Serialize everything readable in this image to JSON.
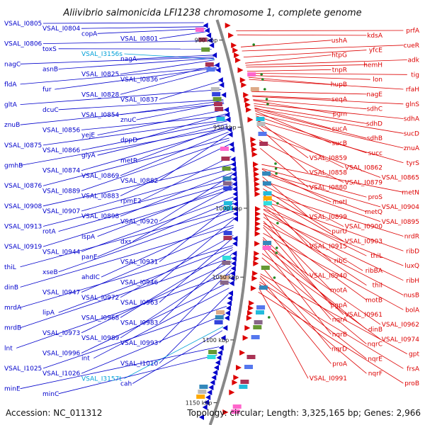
{
  "title": "Aliivibrio salmonicida LFI1238 chromosome 1, complete genome",
  "footer": {
    "accession": "Accession: NC_011312",
    "topology": "Topology: circular; Length: 3,325,165 bp; Genes: 2,966"
  },
  "colors": {
    "forward": "#0000cc",
    "reverse": "#dd0000",
    "rna": "#00a0d8",
    "backbone": "#888888",
    "dot": "#228822"
  },
  "scale_labels": [
    {
      "text": "900 kbp",
      "frac": 0.05
    },
    {
      "text": "950 kbp",
      "frac": 0.265
    },
    {
      "text": "1000 kbp",
      "frac": 0.465
    },
    {
      "text": "1050 kbp",
      "frac": 0.635
    },
    {
      "text": "1100 kbp",
      "frac": 0.79
    },
    {
      "text": "1150 kbp",
      "frac": 0.945
    }
  ],
  "left_labels": [
    {
      "text": "VSAL_I0805",
      "frac": 0.0,
      "type": "fwd"
    },
    {
      "text": "VSAL_I0804",
      "frac": 0.01,
      "type": "fwd"
    },
    {
      "text": "copA",
      "frac": 0.015,
      "type": "fwd"
    },
    {
      "text": "VSAL_I0801",
      "frac": 0.022,
      "type": "fwd"
    },
    {
      "text": "VSAL_I0806",
      "frac": 0.045,
      "type": "fwd"
    },
    {
      "text": "toxS",
      "frac": 0.065,
      "type": "fwd"
    },
    {
      "text": "VSAL_I3156s",
      "frac": 0.09,
      "type": "rna"
    },
    {
      "text": "nagA",
      "frac": 0.08,
      "type": "fwd"
    },
    {
      "text": "nagC",
      "frac": 0.085,
      "type": "fwd"
    },
    {
      "text": "asnB",
      "frac": 0.088,
      "type": "fwd"
    },
    {
      "text": "VSAL_I0825",
      "frac": 0.092,
      "type": "fwd"
    },
    {
      "text": "VSAL_I0836",
      "frac": 0.105,
      "type": "fwd"
    },
    {
      "text": "fldA",
      "frac": 0.11,
      "type": "fwd"
    },
    {
      "text": "fur",
      "frac": 0.112,
      "type": "fwd"
    },
    {
      "text": "VSAL_I0828",
      "frac": 0.115,
      "type": "fwd"
    },
    {
      "text": "VSAL_I0837",
      "frac": 0.145,
      "type": "fwd"
    },
    {
      "text": "gltA",
      "frac": 0.165,
      "type": "fwd"
    },
    {
      "text": "dcuC",
      "frac": 0.19,
      "type": "fwd"
    },
    {
      "text": "VSAL_I0854",
      "frac": 0.193,
      "type": "fwd"
    },
    {
      "text": "znuC",
      "frac": 0.197,
      "type": "fwd"
    },
    {
      "text": "znuB",
      "frac": 0.2,
      "type": "fwd"
    },
    {
      "text": "VSAL_I0856",
      "frac": 0.23,
      "type": "fwd"
    },
    {
      "text": "yejE",
      "frac": 0.215,
      "type": "fwd"
    },
    {
      "text": "dppD",
      "frac": 0.225,
      "type": "fwd"
    },
    {
      "text": "VSAL_I0875",
      "frac": 0.24,
      "type": "fwd"
    },
    {
      "text": "VSAL_I0866",
      "frac": 0.243,
      "type": "fwd"
    },
    {
      "text": "glyA",
      "frac": 0.25,
      "type": "fwd"
    },
    {
      "text": "metR",
      "frac": 0.255,
      "type": "fwd"
    },
    {
      "text": "gmhB",
      "frac": 0.26,
      "type": "fwd"
    },
    {
      "text": "VSAL_I0874",
      "frac": 0.262,
      "type": "fwd"
    },
    {
      "text": "VSAL_I0869",
      "frac": 0.27,
      "type": "fwd"
    },
    {
      "text": "VSAL_I0882",
      "frac": 0.275,
      "type": "fwd"
    },
    {
      "text": "VSAL_I0876",
      "frac": 0.285,
      "type": "fwd"
    },
    {
      "text": "VSAL_I0889",
      "frac": 0.29,
      "type": "fwd"
    },
    {
      "text": "VSAL_I0883",
      "frac": 0.3,
      "type": "fwd"
    },
    {
      "text": "rpmE2",
      "frac": 0.33,
      "type": "fwd"
    },
    {
      "text": "VSAL_I0908",
      "frac": 0.35,
      "type": "fwd"
    },
    {
      "text": "VSAL_I0907",
      "frac": 0.36,
      "type": "fwd"
    },
    {
      "text": "VSAL_I0898",
      "frac": 0.37,
      "type": "fwd"
    },
    {
      "text": "VSAL_I0920",
      "frac": 0.375,
      "type": "fwd"
    },
    {
      "text": "VSAL_I0913",
      "frac": 0.385,
      "type": "fwd"
    },
    {
      "text": "rotA",
      "frac": 0.395,
      "type": "fwd"
    },
    {
      "text": "ispA",
      "frac": 0.4,
      "type": "fwd"
    },
    {
      "text": "dxs",
      "frac": 0.405,
      "type": "fwd"
    },
    {
      "text": "VSAL_I0919",
      "frac": 0.41,
      "type": "fwd"
    },
    {
      "text": "VSAL_I0944",
      "frac": 0.43,
      "type": "fwd"
    },
    {
      "text": "panE",
      "frac": 0.44,
      "type": "fwd"
    },
    {
      "text": "VSAL_I0931",
      "frac": 0.445,
      "type": "fwd"
    },
    {
      "text": "thiL",
      "frac": 0.46,
      "type": "fwd"
    },
    {
      "text": "xseB",
      "frac": 0.465,
      "type": "fwd"
    },
    {
      "text": "ahdIC",
      "frac": 0.48,
      "type": "fwd"
    },
    {
      "text": "VSAL_I0946",
      "frac": 0.485,
      "type": "fwd"
    },
    {
      "text": "dinB",
      "frac": 0.5,
      "type": "fwd"
    },
    {
      "text": "VSAL_I0947",
      "frac": 0.505,
      "type": "fwd"
    },
    {
      "text": "VSAL_I0972",
      "frac": 0.525,
      "type": "fwd"
    },
    {
      "text": "VSAL_I0963",
      "frac": 0.53,
      "type": "fwd"
    },
    {
      "text": "mrdA",
      "frac": 0.55,
      "type": "fwd"
    },
    {
      "text": "lipA",
      "frac": 0.555,
      "type": "fwd"
    },
    {
      "text": "VSAL_I0968",
      "frac": 0.56,
      "type": "fwd"
    },
    {
      "text": "VSAL_I0983",
      "frac": 0.57,
      "type": "fwd"
    },
    {
      "text": "mrdB",
      "frac": 0.58,
      "type": "fwd"
    },
    {
      "text": "VSAL_I0973",
      "frac": 0.59,
      "type": "fwd"
    },
    {
      "text": "VSAL_I0989",
      "frac": 0.6,
      "type": "fwd"
    },
    {
      "text": "VSAL_I0993",
      "frac": 0.61,
      "type": "fwd"
    },
    {
      "text": "lnt",
      "frac": 0.62,
      "type": "fwd"
    },
    {
      "text": "VSAL_I0996",
      "frac": 0.64,
      "type": "fwd"
    },
    {
      "text": "int",
      "frac": 0.655,
      "type": "fwd"
    },
    {
      "text": "VSAL_I1010",
      "frac": 0.67,
      "type": "fwd"
    },
    {
      "text": "VSAL_I1025",
      "frac": 0.7,
      "type": "fwd"
    },
    {
      "text": "VSAL_I1026",
      "frac": 0.72,
      "type": "fwd"
    },
    {
      "text": "VSAL_I3157t",
      "frac": 0.75,
      "type": "rna"
    },
    {
      "text": "cah",
      "frac": 0.76,
      "type": "fwd"
    },
    {
      "text": "minE",
      "frac": 0.8,
      "type": "fwd"
    },
    {
      "text": "minC",
      "frac": 0.82,
      "type": "fwd"
    }
  ],
  "right_labels": [
    {
      "text": "prfA",
      "frac": 0.02
    },
    {
      "text": "kdsA",
      "frac": 0.03
    },
    {
      "text": "ushA",
      "frac": 0.06
    },
    {
      "text": "cueR",
      "frac": 0.07
    },
    {
      "text": "yfcE",
      "frac": 0.085
    },
    {
      "text": "htpG",
      "frac": 0.1
    },
    {
      "text": "adk",
      "frac": 0.105
    },
    {
      "text": "hemH",
      "frac": 0.11
    },
    {
      "text": "tnpR",
      "frac": 0.12
    },
    {
      "text": "tig",
      "frac": 0.125
    },
    {
      "text": "lon",
      "frac": 0.13
    },
    {
      "text": "hupB",
      "frac": 0.135
    },
    {
      "text": "rfaH",
      "frac": 0.14
    },
    {
      "text": "nagE",
      "frac": 0.17
    },
    {
      "text": "seqA",
      "frac": 0.18
    },
    {
      "text": "glnS",
      "frac": 0.182
    },
    {
      "text": "sdhC",
      "frac": 0.19
    },
    {
      "text": "pgm",
      "frac": 0.192
    },
    {
      "text": "sdhA",
      "frac": 0.2
    },
    {
      "text": "sdhD",
      "frac": 0.205
    },
    {
      "text": "sucA",
      "frac": 0.21
    },
    {
      "text": "sucD",
      "frac": 0.212
    },
    {
      "text": "sdhB",
      "frac": 0.215
    },
    {
      "text": "sucB",
      "frac": 0.218
    },
    {
      "text": "znuA",
      "frac": 0.225
    },
    {
      "text": "succ",
      "frac": 0.23
    },
    {
      "text": "VSAL_I0859",
      "frac": 0.24
    },
    {
      "text": "tyrS",
      "frac": 0.242
    },
    {
      "text": "VSAL_I0862",
      "frac": 0.25
    },
    {
      "text": "VSAL_I0858",
      "frac": 0.255
    },
    {
      "text": "VSAL_I0865",
      "frac": 0.27
    },
    {
      "text": "VSAL_I0879",
      "frac": 0.29
    },
    {
      "text": "VSAL_I0880",
      "frac": 0.31
    },
    {
      "text": "metN",
      "frac": 0.35
    },
    {
      "text": "proS",
      "frac": 0.36
    },
    {
      "text": "metI",
      "frac": 0.362
    },
    {
      "text": "VSAL_I0904",
      "frac": 0.37
    },
    {
      "text": "metQ",
      "frac": 0.372
    },
    {
      "text": "VSAL_I0899",
      "frac": 0.38
    },
    {
      "text": "VSAL_I0895",
      "frac": 0.39
    },
    {
      "text": "VSAL_I0900",
      "frac": 0.4
    },
    {
      "text": "purU",
      "frac": 0.41
    },
    {
      "text": "nrdR",
      "frac": 0.42
    },
    {
      "text": "VSAL_I0903",
      "frac": 0.425
    },
    {
      "text": "VSAL_I0915",
      "frac": 0.43
    },
    {
      "text": "ribD",
      "frac": 0.44
    },
    {
      "text": "thiL",
      "frac": 0.45
    },
    {
      "text": "ribC",
      "frac": 0.452
    },
    {
      "text": "luxQ",
      "frac": 0.46
    },
    {
      "text": "ribBA",
      "frac": 0.462
    },
    {
      "text": "VSAL_I0940",
      "frac": 0.47
    },
    {
      "text": "ribH",
      "frac": 0.472
    },
    {
      "text": "thiI",
      "frac": 0.48
    },
    {
      "text": "motA",
      "frac": 0.49
    },
    {
      "text": "nusB",
      "frac": 0.495
    },
    {
      "text": "motB",
      "frac": 0.5
    },
    {
      "text": "pgpA",
      "frac": 0.505
    },
    {
      "text": "bolA",
      "frac": 0.52
    },
    {
      "text": "VSAL_I0961",
      "frac": 0.53
    },
    {
      "text": "nqrA",
      "frac": 0.535
    },
    {
      "text": "VSAL_I0962",
      "frac": 0.545
    },
    {
      "text": "dinB",
      "frac": 0.55
    },
    {
      "text": "nqrB",
      "frac": 0.555
    },
    {
      "text": "VSAL_I0974",
      "frac": 0.57
    },
    {
      "text": "nqrC",
      "frac": 0.58
    },
    {
      "text": "nqrD",
      "frac": 0.6
    },
    {
      "text": "gpt",
      "frac": 0.62
    },
    {
      "text": "nqrE",
      "frac": 0.625
    },
    {
      "text": "proA",
      "frac": 0.63
    },
    {
      "text": "frsA",
      "frac": 0.64
    },
    {
      "text": "nqrF",
      "frac": 0.645
    },
    {
      "text": "VSAL_I0991",
      "frac": 0.655
    },
    {
      "text": "proB",
      "frac": 0.665
    }
  ]
}
